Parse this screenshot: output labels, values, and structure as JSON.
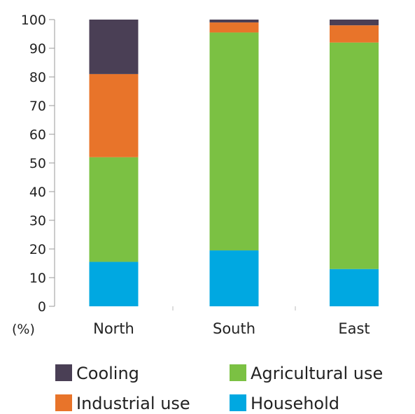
{
  "chart_data": {
    "type": "bar",
    "stacked": true,
    "categories": [
      "North",
      "South",
      "East"
    ],
    "series": [
      {
        "name": "Household",
        "values": [
          15.5,
          19.5,
          13
        ],
        "color": "#00a8e1"
      },
      {
        "name": "Agricultural use",
        "values": [
          36.5,
          76,
          79
        ],
        "color": "#7bc143"
      },
      {
        "name": "Industrial use",
        "values": [
          29,
          3.5,
          6
        ],
        "color": "#e8742a"
      },
      {
        "name": "Cooling",
        "values": [
          19,
          1,
          2
        ],
        "color": "#4a3f55"
      }
    ],
    "yticks": [
      0,
      10,
      20,
      30,
      40,
      50,
      60,
      70,
      80,
      90,
      100
    ],
    "ylim": [
      0,
      100
    ],
    "y_unit_label": "(%)",
    "title": "",
    "xlabel": "",
    "ylabel": "",
    "grid": false,
    "legend": {
      "placement": "bottom",
      "entries": [
        {
          "label": "Cooling",
          "color": "#4a3f55"
        },
        {
          "label": "Agricultural use",
          "color": "#7bc143"
        },
        {
          "label": "Industrial use",
          "color": "#e8742a"
        },
        {
          "label": "Household",
          "color": "#00a8e1"
        }
      ]
    }
  }
}
